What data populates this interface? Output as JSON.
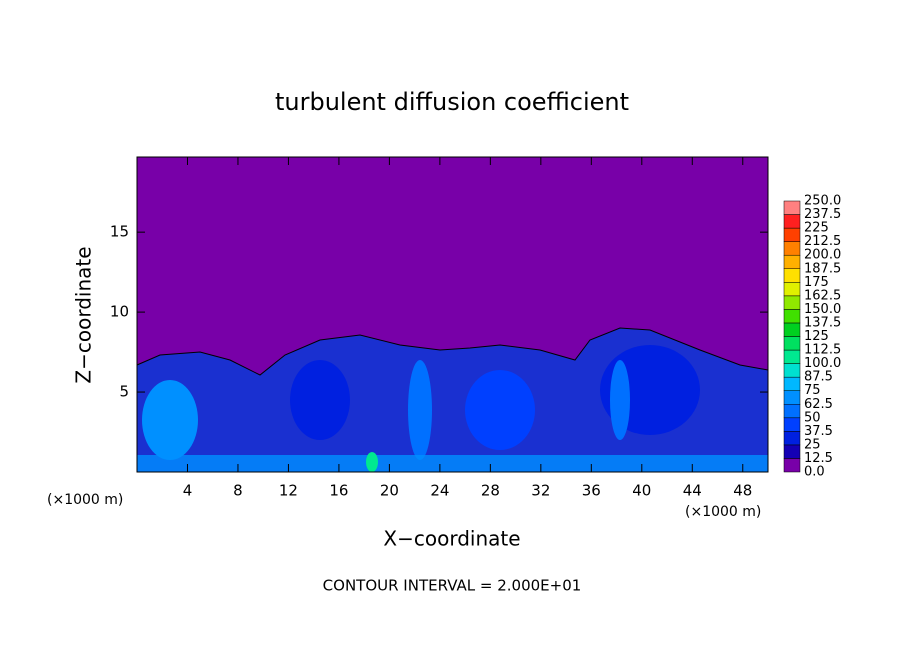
{
  "chart_data": {
    "type": "contour",
    "title": "turbulent diffusion coefficient",
    "x_label": "X−coordinate",
    "y_label": "Z−coordinate",
    "x_unit_left": "(×1000 m)",
    "x_unit_right": "(×1000 m)",
    "note": "CONTOUR INTERVAL = 2.000E+01",
    "xlim": [
      0,
      50
    ],
    "xticks": [
      4,
      8,
      12,
      16,
      20,
      24,
      28,
      32,
      36,
      40,
      44,
      48
    ],
    "ylim": [
      0,
      19.7
    ],
    "yticks": [
      5,
      10,
      15
    ],
    "colorbar": {
      "levels": [
        {
          "value": 0,
          "label": "0.0"
        },
        12.5,
        25,
        37.5,
        50,
        62.5,
        75,
        87.5,
        {
          "value": 100,
          "label": "100.0"
        },
        112.5,
        125,
        137.5,
        {
          "value": 150,
          "label": "150.0"
        },
        162.5,
        175,
        187.5,
        {
          "value": 200,
          "label": "200.0"
        },
        212.5,
        225,
        237.5,
        {
          "value": 250,
          "label": "250.0"
        }
      ],
      "colors": [
        "#7800a8",
        "#1400b4",
        "#0020e0",
        "#0040ff",
        "#0070ff",
        "#0090ff",
        "#00b8ff",
        "#00e0d0",
        "#00e890",
        "#00e060",
        "#00d020",
        "#40e000",
        "#90e800",
        "#e0f000",
        "#ffe000",
        "#ffb000",
        "#ff8000",
        "#ff4000",
        "#ff2020",
        "#ff8080"
      ]
    }
  }
}
